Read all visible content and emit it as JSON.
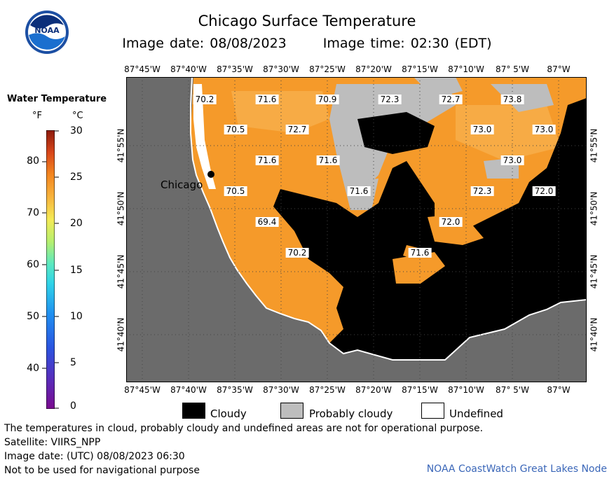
{
  "header": {
    "title": "Chicago Surface Temperature",
    "image_date": "Image date: 08/08/2023",
    "image_time": "Image time: 02:30 (EDT)"
  },
  "logo": {
    "text": "NOAA"
  },
  "legend": {
    "title": "Water Temperature",
    "unit_f": "°F",
    "unit_c": "°C",
    "f_ticks": [
      "80",
      "70",
      "60",
      "50",
      "40"
    ],
    "c_ticks": [
      "30",
      "25",
      "20",
      "15",
      "10",
      "5",
      "0"
    ]
  },
  "map": {
    "lon_ticks": [
      "87°45'W",
      "87°40'W",
      "87°35'W",
      "87°30'W",
      "87°25'W",
      "87°20'W",
      "87°15'W",
      "87°10'W",
      "87° 5'W",
      "87°W"
    ],
    "lat_ticks": [
      "41°55'N",
      "41°50'N",
      "41°45'N",
      "41°40'N"
    ],
    "city_label": "Chicago",
    "temperatures": [
      "70.2",
      "71.6",
      "70.9",
      "72.3",
      "72.7",
      "73.8",
      "70.5",
      "72.7",
      "73.0",
      "73.0",
      "71.6",
      "71.6",
      "73.0",
      "71.6",
      "70.5",
      "72.3",
      "72.0",
      "69.4",
      "72.0",
      "70.2",
      "71.6"
    ],
    "colors": {
      "land": "#6b6b6b",
      "water_warm": "#f59a2a",
      "water_light": "#f7ab45",
      "cloud": "#000000",
      "probably_cloudy": "#bdbdbd",
      "undefined": "#ffffff"
    }
  },
  "key": {
    "cloudy": "Cloudy",
    "probably_cloudy": "Probably cloudy",
    "undefined": "Undefined"
  },
  "footer": {
    "disclaimer": "The temperatures in cloud, probably cloudy and undefined areas are not for operational purpose.",
    "satellite": "Satellite: VIIRS_NPP",
    "utc_date": "Image date: (UTC) 08/08/2023  06:30",
    "nav_warning": "Not to be used for navigational purpose",
    "credit": "NOAA CoastWatch Great Lakes Node"
  }
}
